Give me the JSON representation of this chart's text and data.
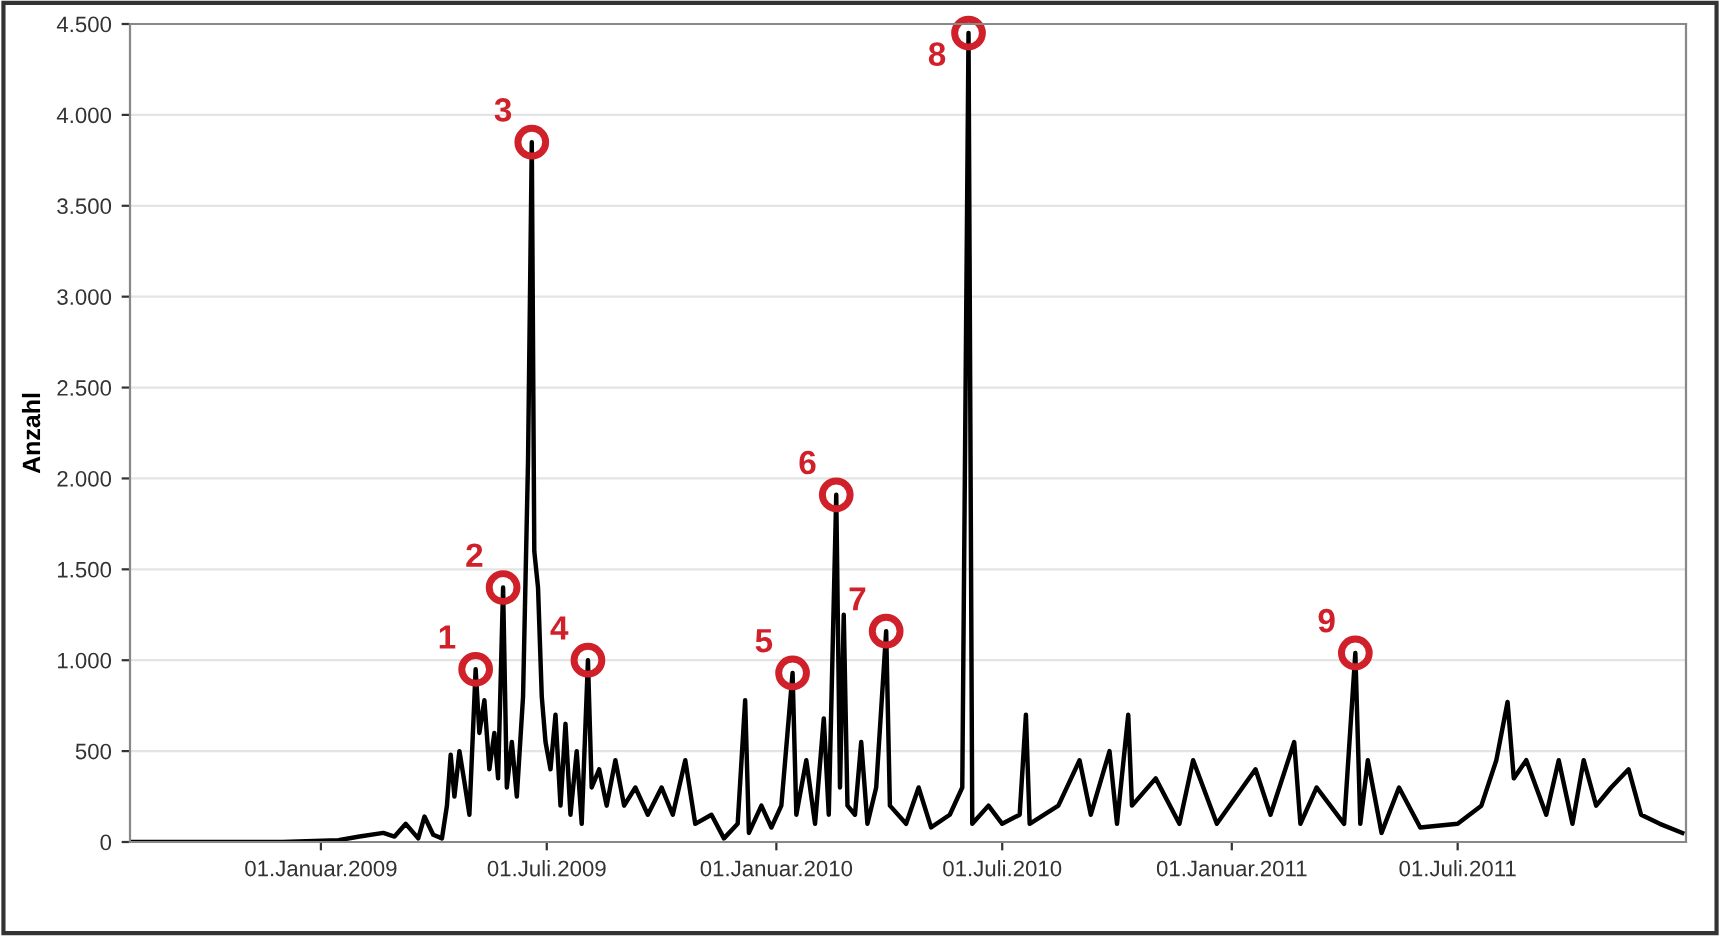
{
  "chart_data": {
    "type": "line",
    "ylabel": "Anzahl",
    "x": [
      "2008-08-01",
      "2008-10-01",
      "2008-12-01",
      "2009-01-15",
      "2009-02-01",
      "2009-02-20",
      "2009-03-01",
      "2009-03-10",
      "2009-03-20",
      "2009-03-25",
      "2009-04-01",
      "2009-04-08",
      "2009-04-12",
      "2009-04-15",
      "2009-04-18",
      "2009-04-22",
      "2009-04-26",
      "2009-04-30",
      "2009-05-05",
      "2009-05-08",
      "2009-05-12",
      "2009-05-16",
      "2009-05-20",
      "2009-05-23",
      "2009-05-27",
      "2009-05-30",
      "2009-06-03",
      "2009-06-07",
      "2009-06-12",
      "2009-06-16",
      "2009-06-19",
      "2009-06-21",
      "2009-06-24",
      "2009-06-27",
      "2009-06-30",
      "2009-07-04",
      "2009-07-08",
      "2009-07-12",
      "2009-07-16",
      "2009-07-20",
      "2009-07-25",
      "2009-07-29",
      "2009-08-03",
      "2009-08-06",
      "2009-08-12",
      "2009-08-18",
      "2009-08-25",
      "2009-09-01",
      "2009-09-10",
      "2009-09-20",
      "2009-10-01",
      "2009-10-10",
      "2009-10-20",
      "2009-10-28",
      "2009-11-10",
      "2009-11-20",
      "2009-12-01",
      "2009-12-07",
      "2009-12-10",
      "2009-12-20",
      "2009-12-28",
      "2010-01-05",
      "2010-01-14",
      "2010-01-17",
      "2010-01-25",
      "2010-02-01",
      "2010-02-08",
      "2010-02-12",
      "2010-02-18",
      "2010-02-21",
      "2010-02-24",
      "2010-02-27",
      "2010-03-05",
      "2010-03-10",
      "2010-03-15",
      "2010-03-22",
      "2010-03-30",
      "2010-04-02",
      "2010-04-15",
      "2010-04-25",
      "2010-05-05",
      "2010-05-20",
      "2010-05-30",
      "2010-06-04",
      "2010-06-07",
      "2010-06-20",
      "2010-07-01",
      "2010-07-15",
      "2010-07-20",
      "2010-07-23",
      "2010-08-15",
      "2010-09-01",
      "2010-09-10",
      "2010-09-25",
      "2010-10-01",
      "2010-10-10",
      "2010-10-13",
      "2010-11-01",
      "2010-11-20",
      "2010-12-01",
      "2010-12-20",
      "2011-01-20",
      "2011-02-01",
      "2011-02-20",
      "2011-02-25",
      "2011-03-10",
      "2011-04-01",
      "2011-04-10",
      "2011-04-14",
      "2011-04-20",
      "2011-05-01",
      "2011-05-15",
      "2011-06-01",
      "2011-07-01",
      "2011-07-20",
      "2011-08-01",
      "2011-08-10",
      "2011-08-15",
      "2011-08-25",
      "2011-09-10",
      "2011-09-20",
      "2011-10-01",
      "2011-10-10",
      "2011-10-20",
      "2011-11-01",
      "2011-11-15",
      "2011-11-25",
      "2011-12-10",
      "2011-12-28"
    ],
    "series": [
      {
        "color": "#000000",
        "values": [
          0,
          0,
          0,
          10,
          30,
          50,
          30,
          100,
          20,
          140,
          40,
          20,
          200,
          480,
          250,
          500,
          330,
          150,
          950,
          600,
          780,
          400,
          600,
          350,
          1400,
          300,
          550,
          250,
          800,
          2100,
          3850,
          1600,
          1400,
          800,
          550,
          400,
          700,
          200,
          650,
          150,
          500,
          100,
          1000,
          300,
          400,
          200,
          450,
          200,
          300,
          150,
          300,
          150,
          450,
          100,
          150,
          20,
          100,
          780,
          50,
          200,
          80,
          200,
          930,
          150,
          450,
          100,
          680,
          150,
          1910,
          300,
          1250,
          200,
          150,
          550,
          100,
          300,
          1160,
          200,
          100,
          300,
          80,
          150,
          300,
          4450,
          100,
          200,
          100,
          150,
          700,
          100,
          200,
          450,
          150,
          500,
          100,
          700,
          200,
          350,
          100,
          450,
          100,
          400,
          150,
          550,
          100,
          300,
          100,
          1040,
          100,
          450,
          50,
          300,
          80,
          100,
          200,
          450,
          770,
          350,
          450,
          150,
          450,
          100,
          450,
          200,
          300,
          400,
          150,
          100,
          50
        ]
      }
    ],
    "xlim": [
      "2008-08-01",
      "2011-12-31"
    ],
    "xticks": [
      {
        "value": "2009-01-01",
        "label": "01.Januar.2009"
      },
      {
        "value": "2009-07-01",
        "label": "01.Juli.2009"
      },
      {
        "value": "2010-01-01",
        "label": "01.Januar.2010"
      },
      {
        "value": "2010-07-01",
        "label": "01.Juli.2010"
      },
      {
        "value": "2011-01-01",
        "label": "01.Januar.2011"
      },
      {
        "value": "2011-07-01",
        "label": "01.Juli.2011"
      }
    ],
    "ylim": [
      0,
      4500
    ],
    "yticks": [
      0,
      500,
      {
        "value": 1000,
        "label": "1.000"
      },
      {
        "value": 1500,
        "label": "1.500"
      },
      {
        "value": 2000,
        "label": "2.000"
      },
      {
        "value": 2500,
        "label": "2.500"
      },
      {
        "value": 3000,
        "label": "3.000"
      },
      {
        "value": 3500,
        "label": "3.500"
      },
      {
        "value": 4000,
        "label": "4.000"
      },
      {
        "value": 4500,
        "label": "4.500"
      }
    ],
    "grid": "y",
    "annotations": [
      {
        "text": "1",
        "x": "2009-05-05",
        "y": 950
      },
      {
        "text": "2",
        "x": "2009-05-27",
        "y": 1400
      },
      {
        "text": "3",
        "x": "2009-06-19",
        "y": 3850
      },
      {
        "text": "4",
        "x": "2009-08-03",
        "y": 1000
      },
      {
        "text": "5",
        "x": "2010-01-14",
        "y": 930
      },
      {
        "text": "6",
        "x": "2010-02-18",
        "y": 1910
      },
      {
        "text": "7",
        "x": "2010-03-30",
        "y": 1160
      },
      {
        "text": "8",
        "x": "2010-06-04",
        "y": 4450
      },
      {
        "text": "9",
        "x": "2011-04-10",
        "y": 1040
      }
    ]
  }
}
